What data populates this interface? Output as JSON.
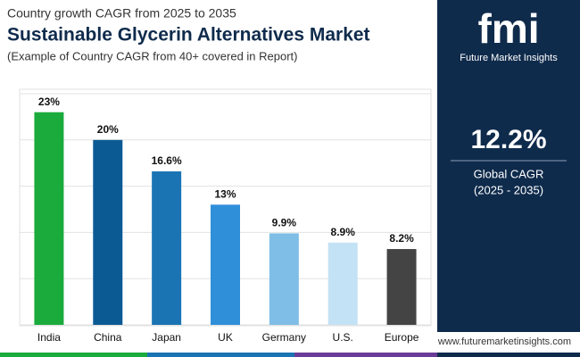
{
  "chart_data": {
    "type": "bar",
    "supertitle": "Country growth CAGR from 2025 to 2035",
    "title": "Sustainable Glycerin Alternatives Market",
    "subtitle": "(Example of Country CAGR from 40+ covered in Report)",
    "categories": [
      "India",
      "China",
      "Japan",
      "UK",
      "Germany",
      "U.S.",
      "Europe"
    ],
    "values": [
      23,
      20,
      16.6,
      13,
      9.9,
      8.9,
      8.2
    ],
    "value_labels": [
      "23%",
      "20%",
      "16.6%",
      "13%",
      "9.9%",
      "8.9%",
      "8.2%"
    ],
    "colors": [
      "#1aab3c",
      "#0b5a93",
      "#1a74b4",
      "#2f8fd9",
      "#7fbee6",
      "#c4e2f5",
      "#444444"
    ],
    "ylim": [
      0,
      25
    ],
    "yticks": [
      0,
      5,
      10,
      15,
      20,
      25
    ],
    "grid": true
  },
  "side_panel": {
    "value_label": "12.2%",
    "label": "Global CAGR",
    "period": "(2025 - 2035)"
  },
  "logo": {
    "mark": "fmi",
    "name": "Future Market Insights"
  },
  "footer": {
    "website": "www.futuremarketinsights.com"
  }
}
